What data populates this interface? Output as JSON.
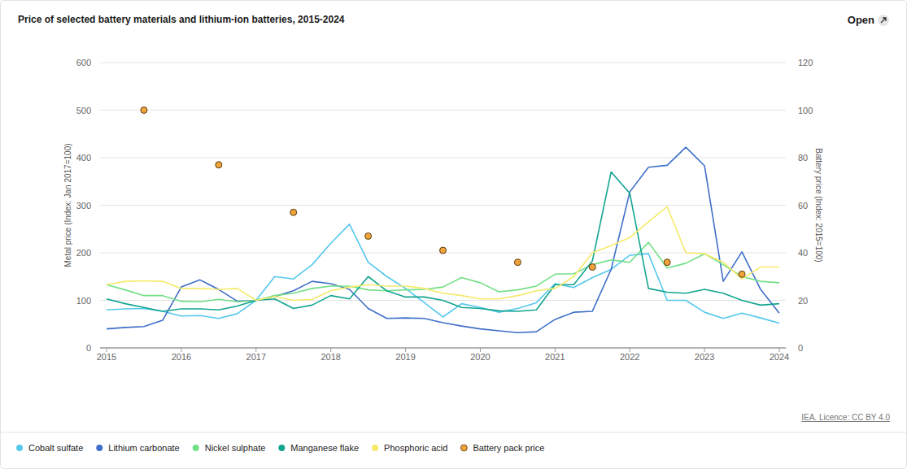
{
  "chart_data": {
    "type": "line",
    "title": "Price of selected battery materials and lithium-ion batteries, 2015-2024",
    "button": "Open",
    "source": "IEA. Licence: CC BY 4.0",
    "y_label": "Metal price (Index: Jan 2017=100)",
    "y2_label": "Battery price (Index: 2015=100)",
    "x": [
      2015,
      2015.25,
      2015.5,
      2015.75,
      2016,
      2016.25,
      2016.5,
      2016.75,
      2017,
      2017.25,
      2017.5,
      2017.75,
      2018,
      2018.25,
      2018.5,
      2018.75,
      2019,
      2019.25,
      2019.5,
      2019.75,
      2020,
      2020.25,
      2020.5,
      2020.75,
      2021,
      2021.25,
      2021.5,
      2021.75,
      2022,
      2022.25,
      2022.5,
      2022.75,
      2023,
      2023.25,
      2023.5,
      2023.75,
      2024
    ],
    "xlim": [
      2015,
      2024
    ],
    "xticks": [
      2015,
      2016,
      2017,
      2018,
      2019,
      2020,
      2021,
      2022,
      2023,
      2024
    ],
    "ylim": [
      0,
      600
    ],
    "yticks": [
      0,
      100,
      200,
      300,
      400,
      500,
      600
    ],
    "y2lim": [
      0,
      120
    ],
    "y2ticks": [
      0,
      20,
      40,
      60,
      80,
      100,
      120
    ],
    "grid": true,
    "legend": "bottom",
    "series": [
      {
        "name": "Cobalt sulfate",
        "color": "#56c8ec",
        "values": [
          80,
          82,
          83,
          77,
          67,
          68,
          62,
          72,
          100,
          150,
          145,
          175,
          220,
          260,
          180,
          150,
          125,
          95,
          65,
          93,
          85,
          75,
          83,
          95,
          135,
          127,
          148,
          165,
          195,
          198,
          100,
          100,
          75,
          62,
          73,
          63,
          52
        ]
      },
      {
        "name": "Lithium carbonate",
        "color": "#3f6fc8",
        "values": [
          40,
          43,
          45,
          58,
          128,
          143,
          123,
          98,
          100,
          108,
          120,
          140,
          135,
          123,
          83,
          62,
          63,
          62,
          53,
          46,
          40,
          36,
          32,
          34,
          60,
          75,
          77,
          165,
          328,
          380,
          384,
          422,
          383,
          140,
          202,
          123,
          73
        ]
      },
      {
        "name": "Nickel sulphate",
        "color": "#72df85",
        "values": [
          133,
          122,
          110,
          110,
          98,
          97,
          102,
          97,
          100,
          110,
          115,
          125,
          130,
          130,
          122,
          120,
          122,
          123,
          128,
          148,
          137,
          118,
          122,
          130,
          155,
          156,
          175,
          185,
          180,
          222,
          168,
          178,
          198,
          175,
          150,
          140,
          137
        ]
      },
      {
        "name": "Manganese flake",
        "color": "#12a58f",
        "values": [
          103,
          93,
          85,
          77,
          82,
          82,
          80,
          88,
          100,
          103,
          83,
          90,
          110,
          103,
          150,
          120,
          107,
          107,
          100,
          85,
          83,
          78,
          77,
          80,
          133,
          133,
          183,
          370,
          325,
          125,
          117,
          115,
          123,
          115,
          100,
          90,
          93
        ]
      },
      {
        "name": "Phosphoric acid",
        "color": "#f5ea6a",
        "values": [
          133,
          140,
          141,
          140,
          125,
          125,
          123,
          125,
          100,
          108,
          100,
          102,
          120,
          128,
          133,
          130,
          130,
          125,
          115,
          110,
          103,
          103,
          110,
          120,
          125,
          150,
          200,
          215,
          232,
          265,
          297,
          200,
          198,
          180,
          145,
          170,
          170
        ]
      },
      {
        "name": "Battery pack price",
        "color": "#f0a33a",
        "type": "scatter",
        "marker": "circle",
        "axis": "y2",
        "values": [
          null,
          null,
          100,
          null,
          null,
          null,
          77,
          null,
          null,
          null,
          57,
          null,
          null,
          null,
          47,
          null,
          null,
          null,
          41,
          null,
          null,
          null,
          36,
          null,
          null,
          null,
          34,
          null,
          null,
          null,
          36,
          null,
          null,
          null,
          31,
          null,
          null
        ]
      }
    ]
  }
}
